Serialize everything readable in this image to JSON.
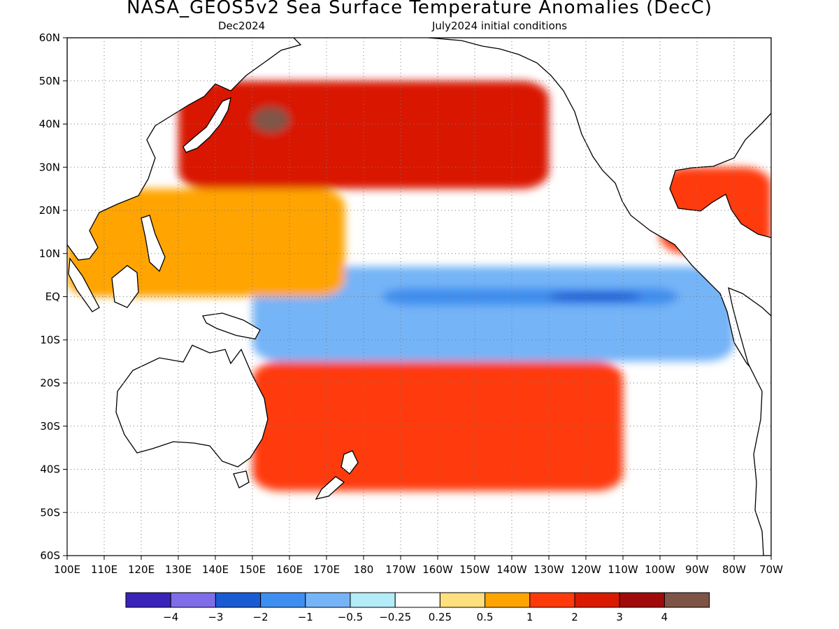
{
  "title": "NASA_GEOS5v2 Sea Surface Temperature Anomalies (DecC)",
  "subtitle_left": "Dec2024",
  "subtitle_right": "July2024 initial conditions",
  "chart_data": {
    "type": "heatmap",
    "title": "NASA_GEOS5v2 Sea Surface Temperature Anomalies (DecC)",
    "valid_month": "Dec2024",
    "initial_conditions": "July2024 initial conditions",
    "units": "DecC",
    "lat_range": [
      -60,
      60
    ],
    "lon_range": [
      100,
      290
    ],
    "lat_ticks": [
      {
        "value": 60,
        "label": "60N"
      },
      {
        "value": 50,
        "label": "50N"
      },
      {
        "value": 40,
        "label": "40N"
      },
      {
        "value": 30,
        "label": "30N"
      },
      {
        "value": 20,
        "label": "20N"
      },
      {
        "value": 10,
        "label": "10N"
      },
      {
        "value": 0,
        "label": "EQ"
      },
      {
        "value": -10,
        "label": "10S"
      },
      {
        "value": -20,
        "label": "20S"
      },
      {
        "value": -30,
        "label": "30S"
      },
      {
        "value": -40,
        "label": "40S"
      },
      {
        "value": -50,
        "label": "50S"
      },
      {
        "value": -60,
        "label": "60S"
      }
    ],
    "lon_ticks": [
      {
        "value": 100,
        "label": "100E"
      },
      {
        "value": 110,
        "label": "110E"
      },
      {
        "value": 120,
        "label": "120E"
      },
      {
        "value": 130,
        "label": "130E"
      },
      {
        "value": 140,
        "label": "140E"
      },
      {
        "value": 150,
        "label": "150E"
      },
      {
        "value": 160,
        "label": "160E"
      },
      {
        "value": 170,
        "label": "170E"
      },
      {
        "value": 180,
        "label": "180"
      },
      {
        "value": 190,
        "label": "170W"
      },
      {
        "value": 200,
        "label": "160W"
      },
      {
        "value": 210,
        "label": "150W"
      },
      {
        "value": 220,
        "label": "140W"
      },
      {
        "value": 230,
        "label": "130W"
      },
      {
        "value": 240,
        "label": "120W"
      },
      {
        "value": 250,
        "label": "110W"
      },
      {
        "value": 260,
        "label": "100W"
      },
      {
        "value": 270,
        "label": "90W"
      },
      {
        "value": 280,
        "label": "80W"
      },
      {
        "value": 290,
        "label": "70W"
      }
    ],
    "grid": true,
    "colorbar": {
      "bin_edges": [
        -4,
        -3,
        -2,
        -1,
        -0.5,
        -0.25,
        0.25,
        0.5,
        1,
        2,
        3,
        4
      ],
      "edge_labels": [
        "−4",
        "−3",
        "−2",
        "−1",
        "−0.5",
        "−0.25",
        "0.25",
        "0.5",
        "1",
        "2",
        "3",
        "4"
      ],
      "colors": [
        "#3a23b8",
        "#7f6ce9",
        "#1a5ad2",
        "#3d8ef0",
        "#75b4f7",
        "#b4ecf8",
        "#ffffff",
        "#ffe07e",
        "#ffa400",
        "#ff3a0a",
        "#d91900",
        "#a10a0a",
        "#7e5446"
      ]
    },
    "features": [
      {
        "name": "equatorial cold tongue",
        "lon_range": [
          150,
          280
        ],
        "lat_range": [
          -15,
          7
        ],
        "anomaly": -1.0
      },
      {
        "name": "cold tongue core",
        "lon_range": [
          185,
          265
        ],
        "lat_range": [
          -2,
          2
        ],
        "anomaly": -2.0
      },
      {
        "name": "cold core maximum",
        "lon_range": [
          230,
          255
        ],
        "lat_range": [
          -1,
          1
        ],
        "anomaly": -3.0
      },
      {
        "name": "North Pacific warm band",
        "lon_range": [
          130,
          230
        ],
        "lat_range": [
          25,
          50
        ],
        "anomaly": 2.0
      },
      {
        "name": "Kuroshio extension max",
        "lon_range": [
          150,
          160
        ],
        "lat_range": [
          38,
          44
        ],
        "anomaly": 4.0
      },
      {
        "name": "Western Pacific warm pool",
        "lon_range": [
          100,
          175
        ],
        "lat_range": [
          0,
          25
        ],
        "anomaly": 0.75
      },
      {
        "name": "South Pacific warm band",
        "lon_range": [
          150,
          250
        ],
        "lat_range": [
          -45,
          -15
        ],
        "anomaly": 1.5
      },
      {
        "name": "Caribbean / Gulf of Mexico",
        "lon_range": [
          260,
          290
        ],
        "lat_range": [
          10,
          30
        ],
        "anomaly": 1.0
      }
    ]
  }
}
